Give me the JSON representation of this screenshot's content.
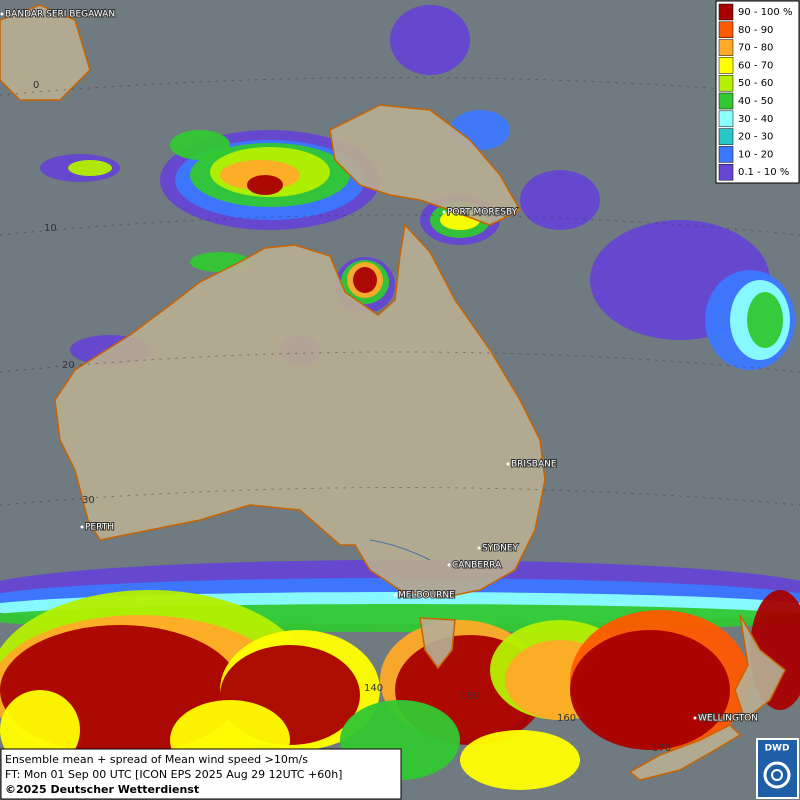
{
  "legend": {
    "items": [
      {
        "label": "90 - 100 %",
        "color": "#a80000"
      },
      {
        "label": "80 - 90",
        "color": "#ff5a00"
      },
      {
        "label": "70 - 80",
        "color": "#ffaa28"
      },
      {
        "label": "60 - 70",
        "color": "#ffff00"
      },
      {
        "label": "50 - 60",
        "color": "#b4f000"
      },
      {
        "label": "40 - 50",
        "color": "#32c832"
      },
      {
        "label": "30 - 40",
        "color": "#8cffff"
      },
      {
        "label": "20 - 30",
        "color": "#28c8c8"
      },
      {
        "label": "10 - 20",
        "color": "#3c78ff"
      },
      {
        "label": "0.1 - 10 %",
        "color": "#6446d2"
      }
    ]
  },
  "places": [
    "BANDAR SERI BEGAWAN",
    "PORT MORESBY",
    "BRISBANE",
    "PERTH",
    "SYDNEY",
    "CANBERRA",
    "MELBOURNE",
    "WELLINGTON"
  ],
  "grid_labels": [
    "0",
    "10",
    "20",
    "30",
    "140",
    "150",
    "160",
    "170"
  ],
  "footer": {
    "line1": "Ensemble mean + spread of Mean wind speed >10m/s",
    "line2": "FT: Mon 01 Sep 00 UTC [ICON EPS 2025 Aug 29 12UTC +60h]",
    "copyright": "©2025 Deutscher Wetterdienst"
  },
  "logo": "DWD"
}
